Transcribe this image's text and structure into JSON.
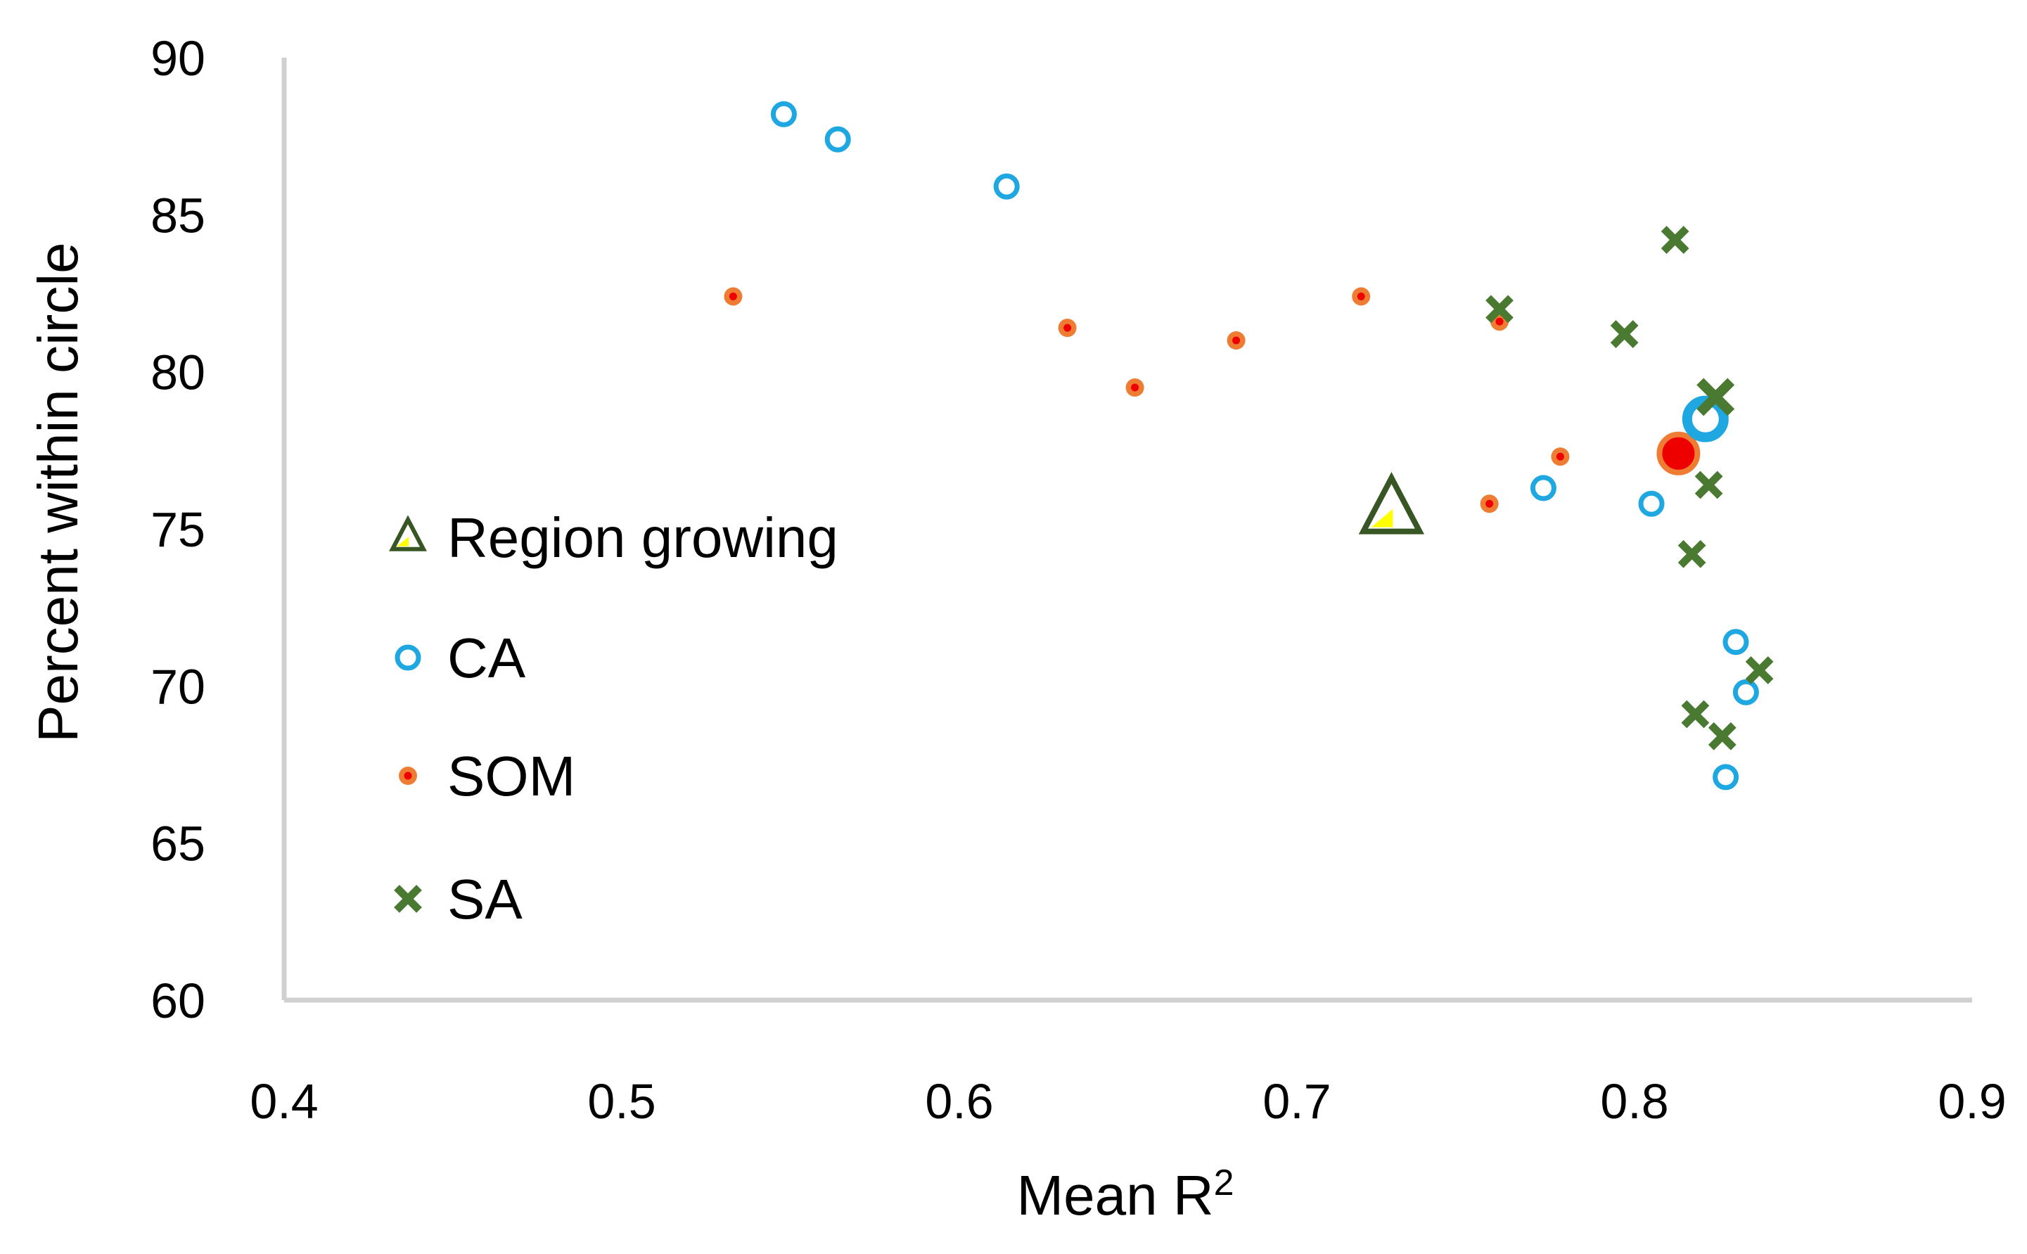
{
  "chart_data": {
    "type": "scatter",
    "title": "",
    "xlabel": "Mean R",
    "xlabel_superscript": "2",
    "ylabel": "Percent within circle",
    "xlim": [
      0.4,
      0.9
    ],
    "ylim": [
      60,
      90
    ],
    "xticks": [
      "0.4",
      "0.5",
      "0.6",
      "0.7",
      "0.8",
      "0.9"
    ],
    "yticks": [
      "60",
      "65",
      "70",
      "75",
      "80",
      "85",
      "90"
    ],
    "grid": false,
    "legend": "left",
    "colors": {
      "axis": "#d0d0d0",
      "ca": "#1ea7e1",
      "som_fill": "#ee0000",
      "som_ring": "#ee7d33",
      "sa": "#4a7a31",
      "rg_fill": "#ffff00",
      "rg_edge": "#375623"
    },
    "series": [
      {
        "name": "Region growing",
        "marker": "triangle",
        "points": [
          {
            "x": 0.728,
            "y": 75.6,
            "highlight": true
          }
        ]
      },
      {
        "name": "CA",
        "marker": "open-circle",
        "points": [
          {
            "x": 0.548,
            "y": 88.2
          },
          {
            "x": 0.564,
            "y": 87.4
          },
          {
            "x": 0.614,
            "y": 85.9
          },
          {
            "x": 0.773,
            "y": 76.3
          },
          {
            "x": 0.805,
            "y": 75.8
          },
          {
            "x": 0.821,
            "y": 78.5,
            "highlight": true
          },
          {
            "x": 0.83,
            "y": 71.4
          },
          {
            "x": 0.833,
            "y": 69.8
          },
          {
            "x": 0.827,
            "y": 67.1
          }
        ]
      },
      {
        "name": "SOM",
        "marker": "dot",
        "points": [
          {
            "x": 0.533,
            "y": 82.4
          },
          {
            "x": 0.632,
            "y": 81.4
          },
          {
            "x": 0.652,
            "y": 79.5
          },
          {
            "x": 0.682,
            "y": 81.0
          },
          {
            "x": 0.719,
            "y": 82.4
          },
          {
            "x": 0.76,
            "y": 81.6
          },
          {
            "x": 0.778,
            "y": 77.3
          },
          {
            "x": 0.757,
            "y": 75.8
          },
          {
            "x": 0.813,
            "y": 77.4,
            "highlight": true
          }
        ]
      },
      {
        "name": "SA",
        "marker": "x",
        "points": [
          {
            "x": 0.812,
            "y": 84.2
          },
          {
            "x": 0.76,
            "y": 82.0
          },
          {
            "x": 0.797,
            "y": 81.2
          },
          {
            "x": 0.824,
            "y": 79.2,
            "highlight": true
          },
          {
            "x": 0.822,
            "y": 76.4
          },
          {
            "x": 0.817,
            "y": 74.2
          },
          {
            "x": 0.837,
            "y": 70.5
          },
          {
            "x": 0.818,
            "y": 69.1
          },
          {
            "x": 0.826,
            "y": 68.4
          }
        ]
      }
    ]
  }
}
